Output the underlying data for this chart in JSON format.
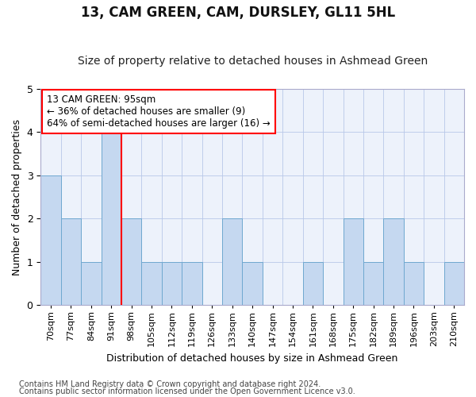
{
  "title": "13, CAM GREEN, CAM, DURSLEY, GL11 5HL",
  "subtitle": "Size of property relative to detached houses in Ashmead Green",
  "xlabel": "Distribution of detached houses by size in Ashmead Green",
  "ylabel": "Number of detached properties",
  "footnote1": "Contains HM Land Registry data © Crown copyright and database right 2024.",
  "footnote2": "Contains public sector information licensed under the Open Government Licence v3.0.",
  "annotation_line1": "13 CAM GREEN: 95sqm",
  "annotation_line2": "← 36% of detached houses are smaller (9)",
  "annotation_line3": "64% of semi-detached houses are larger (16) →",
  "categories": [
    "70sqm",
    "77sqm",
    "84sqm",
    "91sqm",
    "98sqm",
    "105sqm",
    "112sqm",
    "119sqm",
    "126sqm",
    "133sqm",
    "140sqm",
    "147sqm",
    "154sqm",
    "161sqm",
    "168sqm",
    "175sqm",
    "182sqm",
    "189sqm",
    "196sqm",
    "203sqm",
    "210sqm"
  ],
  "values": [
    3,
    2,
    1,
    4,
    2,
    1,
    1,
    1,
    0,
    2,
    1,
    0,
    0,
    1,
    0,
    2,
    1,
    2,
    1,
    0,
    1
  ],
  "bar_color": "#c5d8f0",
  "bar_edge_color": "#6fa8d0",
  "red_line_x": 3.5,
  "ylim": [
    0,
    5
  ],
  "yticks": [
    0,
    1,
    2,
    3,
    4,
    5
  ],
  "background_color": "#edf2fb",
  "grid_color": "#b8c8e8",
  "title_fontsize": 12,
  "subtitle_fontsize": 10,
  "xlabel_fontsize": 9,
  "ylabel_fontsize": 9,
  "tick_fontsize": 8,
  "annotation_fontsize": 8.5,
  "footnote_fontsize": 7
}
